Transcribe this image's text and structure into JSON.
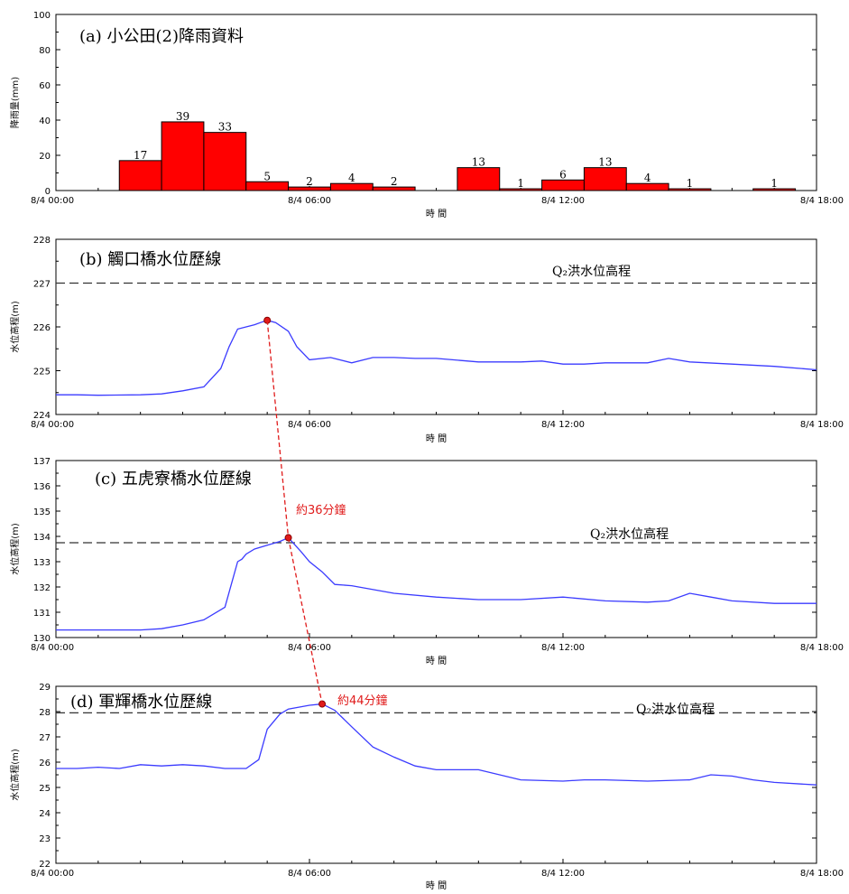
{
  "chart_data": [
    {
      "id": "a",
      "type": "bar",
      "title": "(a) 小公田(2)降雨資料",
      "xlabel": "時 間",
      "ylabel": "降雨量(mm)",
      "ylim": [
        0,
        100
      ],
      "y_ticks": [
        "0",
        "20",
        "40",
        "60",
        "80",
        "100"
      ],
      "x_ticks": [
        "8/4 00:00",
        "8/4 06:00",
        "8/4 12:00",
        "8/4 18:00"
      ],
      "bar_color": "#ff0000",
      "bars": [
        {
          "start_hour": 1.5,
          "value": 17
        },
        {
          "start_hour": 2.5,
          "value": 39
        },
        {
          "start_hour": 3.5,
          "value": 33
        },
        {
          "start_hour": 4.5,
          "value": 5
        },
        {
          "start_hour": 5.5,
          "value": 2
        },
        {
          "start_hour": 6.5,
          "value": 4
        },
        {
          "start_hour": 7.5,
          "value": 2
        },
        {
          "start_hour": 9.5,
          "value": 13
        },
        {
          "start_hour": 10.5,
          "value": 1
        },
        {
          "start_hour": 11.5,
          "value": 6
        },
        {
          "start_hour": 12.5,
          "value": 13
        },
        {
          "start_hour": 13.5,
          "value": 4
        },
        {
          "start_hour": 14.5,
          "value": 1
        },
        {
          "start_hour": 16.5,
          "value": 1
        }
      ]
    },
    {
      "id": "b",
      "type": "line",
      "title": "(b) 觸口橋水位歷線",
      "xlabel": "時 間",
      "ylabel": "水位高程(m)",
      "ylim": [
        224,
        228
      ],
      "y_ticks": [
        "224",
        "225",
        "226",
        "227",
        "228"
      ],
      "x_ticks": [
        "8/4 00:00",
        "8/4 06:00",
        "8/4 12:00",
        "8/4 18:00"
      ],
      "threshold_label": "Q₂洪水位高程",
      "threshold": 227.0,
      "line_color": "#3b3bff",
      "peak": {
        "hour": 5.0,
        "value": 226.15
      },
      "x": [
        0,
        0.5,
        1,
        2,
        2.5,
        3,
        3.5,
        3.9,
        4.1,
        4.3,
        4.5,
        4.7,
        4.9,
        5.0,
        5.2,
        5.5,
        5.7,
        6.0,
        6.5,
        7.0,
        7.5,
        8.0,
        8.5,
        9.0,
        10.0,
        10.5,
        11.0,
        11.5,
        12.0,
        12.5,
        13.0,
        14.0,
        14.5,
        15.0,
        16.0,
        17.0,
        18.0
      ],
      "y": [
        224.45,
        224.45,
        224.44,
        224.45,
        224.47,
        224.54,
        224.63,
        225.05,
        225.55,
        225.95,
        226.0,
        226.05,
        226.12,
        226.15,
        226.1,
        225.9,
        225.55,
        225.25,
        225.3,
        225.18,
        225.3,
        225.3,
        225.28,
        225.28,
        225.2,
        225.2,
        225.2,
        225.22,
        225.15,
        225.15,
        225.18,
        225.18,
        225.28,
        225.2,
        225.15,
        225.1,
        225.02
      ]
    },
    {
      "id": "c",
      "type": "line",
      "title": "(c) 五虎寮橋水位歷線",
      "xlabel": "時 間",
      "ylabel": "水位高程(m)",
      "ylim": [
        130,
        137
      ],
      "y_ticks": [
        "130",
        "131",
        "132",
        "133",
        "134",
        "135",
        "136",
        "137"
      ],
      "x_ticks": [
        "8/4 00:00",
        "8/4 06:00",
        "8/4 12:00",
        "8/4 18:00"
      ],
      "threshold_label": "Q₂洪水位高程",
      "threshold": 133.75,
      "line_color": "#3b3bff",
      "peak": {
        "hour": 5.5,
        "value": 133.95
      },
      "lag_label": "約36分鐘",
      "x": [
        0,
        1,
        2,
        2.5,
        3,
        3.5,
        4.0,
        4.3,
        4.4,
        4.5,
        4.7,
        5.0,
        5.3,
        5.5,
        5.8,
        6.0,
        6.3,
        6.6,
        7.0,
        8.0,
        9.0,
        10.0,
        11.0,
        12.0,
        13.0,
        14.0,
        14.5,
        15.0,
        15.5,
        16.0,
        17.0,
        18.0
      ],
      "y": [
        130.3,
        130.3,
        130.3,
        130.35,
        130.5,
        130.7,
        131.2,
        133.0,
        133.1,
        133.3,
        133.5,
        133.65,
        133.8,
        133.95,
        133.4,
        133.0,
        132.6,
        132.1,
        132.05,
        131.75,
        131.6,
        131.5,
        131.5,
        131.6,
        131.45,
        131.4,
        131.45,
        131.75,
        131.6,
        131.45,
        131.35,
        131.35
      ]
    },
    {
      "id": "d",
      "type": "line",
      "title": "(d) 軍輝橋水位歷線",
      "xlabel": "時 間",
      "ylabel": "水位高程(m)",
      "ylim": [
        22,
        29
      ],
      "y_ticks": [
        "22",
        "23",
        "24",
        "25",
        "26",
        "27",
        "28",
        "29"
      ],
      "x_ticks": [
        "8/4 00:00",
        "8/4 06:00",
        "8/4 12:00",
        "8/4 18:00"
      ],
      "threshold_label": "Q₂洪水位高程",
      "threshold": 27.95,
      "line_color": "#3b3bff",
      "peak": {
        "hour": 6.3,
        "value": 28.3
      },
      "lag_label": "約44分鐘",
      "x": [
        0,
        0.5,
        1,
        1.5,
        2,
        2.5,
        3,
        3.5,
        4.0,
        4.5,
        4.8,
        5.0,
        5.3,
        5.5,
        6.0,
        6.3,
        6.6,
        7.0,
        7.5,
        8.0,
        8.5,
        9.0,
        9.5,
        10.0,
        11.0,
        12.0,
        12.5,
        13.0,
        14.0,
        15.0,
        15.5,
        16.0,
        16.5,
        17.0,
        18.0
      ],
      "y": [
        25.75,
        25.75,
        25.8,
        25.75,
        25.9,
        25.85,
        25.9,
        25.85,
        25.75,
        25.75,
        26.1,
        27.3,
        27.9,
        28.1,
        28.25,
        28.3,
        28.05,
        27.4,
        26.6,
        26.2,
        25.85,
        25.7,
        25.7,
        25.7,
        25.3,
        25.25,
        25.3,
        25.3,
        25.25,
        25.3,
        25.5,
        25.45,
        25.3,
        25.2,
        25.1
      ]
    }
  ]
}
